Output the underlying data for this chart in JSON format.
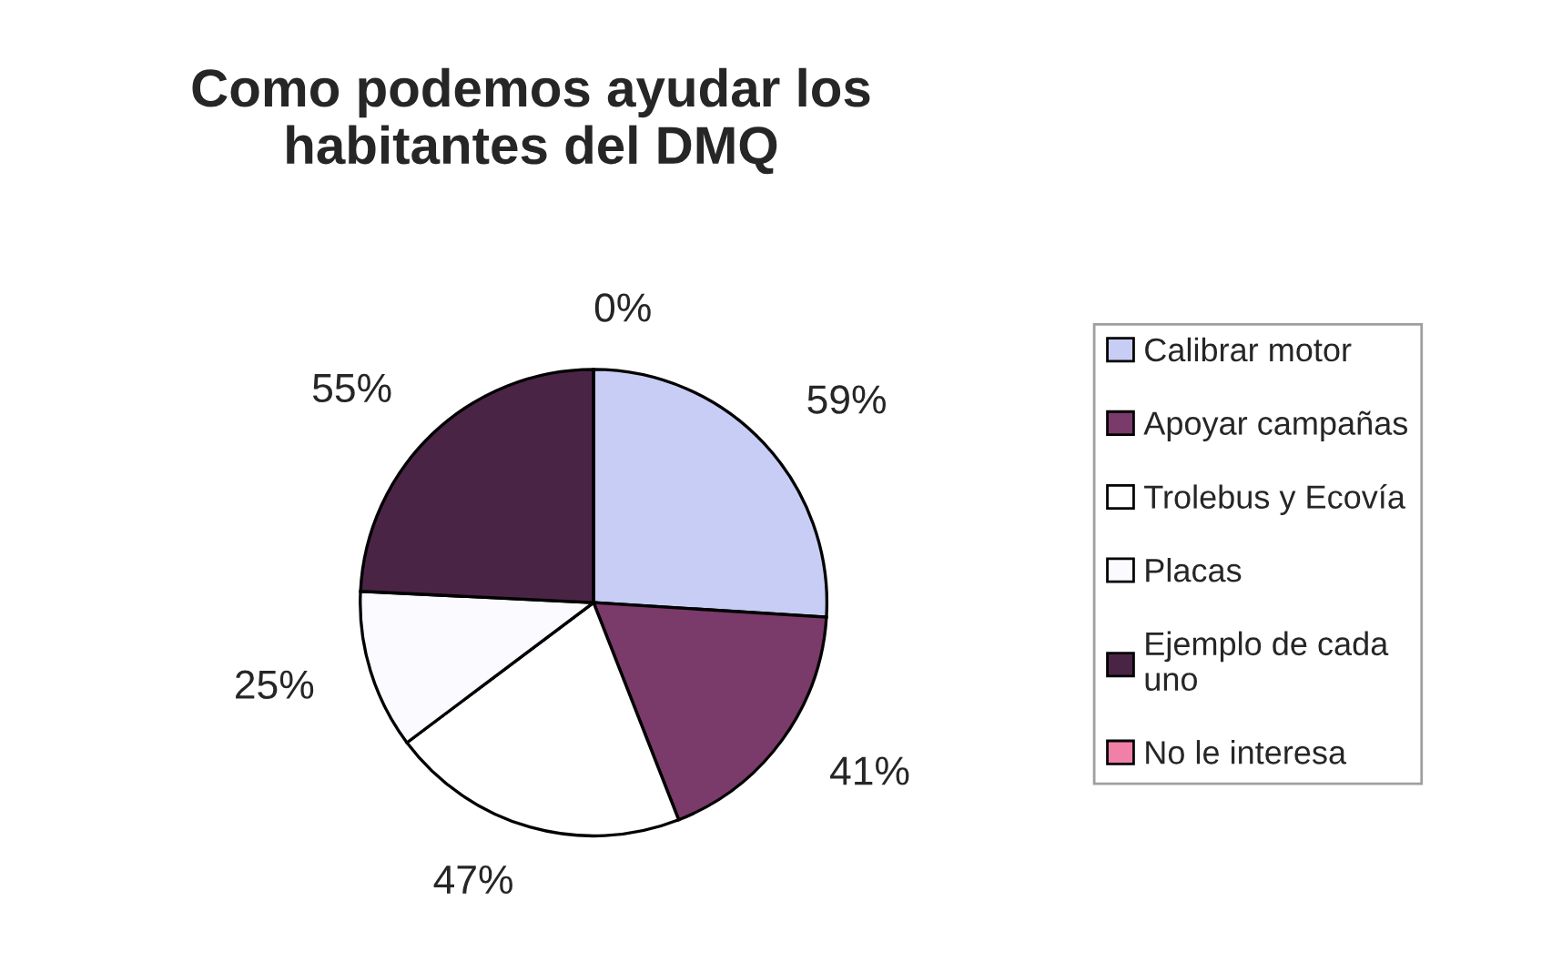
{
  "chart_data": {
    "type": "pie",
    "title": "Como podemos ayudar los\nhabitantes del DMQ",
    "categories": [
      "Calibrar motor",
      "Apoyar campañas",
      "Trolebus y Ecovía",
      "Placas",
      "Ejemplo de cada\nuno",
      "No le interesa"
    ],
    "values": [
      59,
      41,
      47,
      25,
      55,
      0
    ],
    "value_labels": [
      "59%",
      "41%",
      "47%",
      "25%",
      "55%",
      "0%"
    ],
    "colors": [
      "#c8cdf5",
      "#7a3a6a",
      "#ffffff",
      "#fafaff",
      "#4a2445",
      "#f080a8"
    ],
    "legend": "right"
  }
}
